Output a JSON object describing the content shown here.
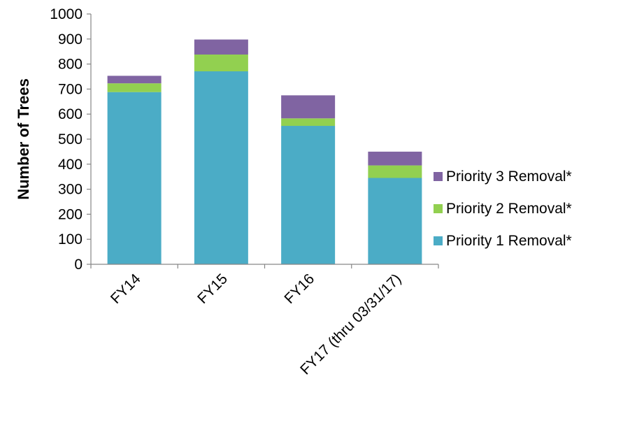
{
  "chart_data": {
    "type": "bar",
    "stacked": true,
    "categories": [
      "FY14",
      "FY15",
      "FY16",
      "FY17 (thru 03/31/17)"
    ],
    "series": [
      {
        "name": "Priority 1 Removal*",
        "values": [
          688,
          771,
          553,
          345
        ],
        "color": "#4bacc6"
      },
      {
        "name": "Priority 2 Removal*",
        "values": [
          35,
          67,
          30,
          50
        ],
        "color": "#92d050"
      },
      {
        "name": "Priority 3 Removal*",
        "values": [
          30,
          60,
          92,
          55
        ],
        "color": "#8064a2"
      }
    ],
    "ylabel": "Number of Trees",
    "ylim": [
      0,
      1000
    ],
    "yticks": [
      0,
      100,
      200,
      300,
      400,
      500,
      600,
      700,
      800,
      900,
      1000
    ],
    "grid": false,
    "legend_position": "right",
    "legend_order": [
      "Priority 3 Removal*",
      "Priority 2 Removal*",
      "Priority 1 Removal*"
    ]
  }
}
